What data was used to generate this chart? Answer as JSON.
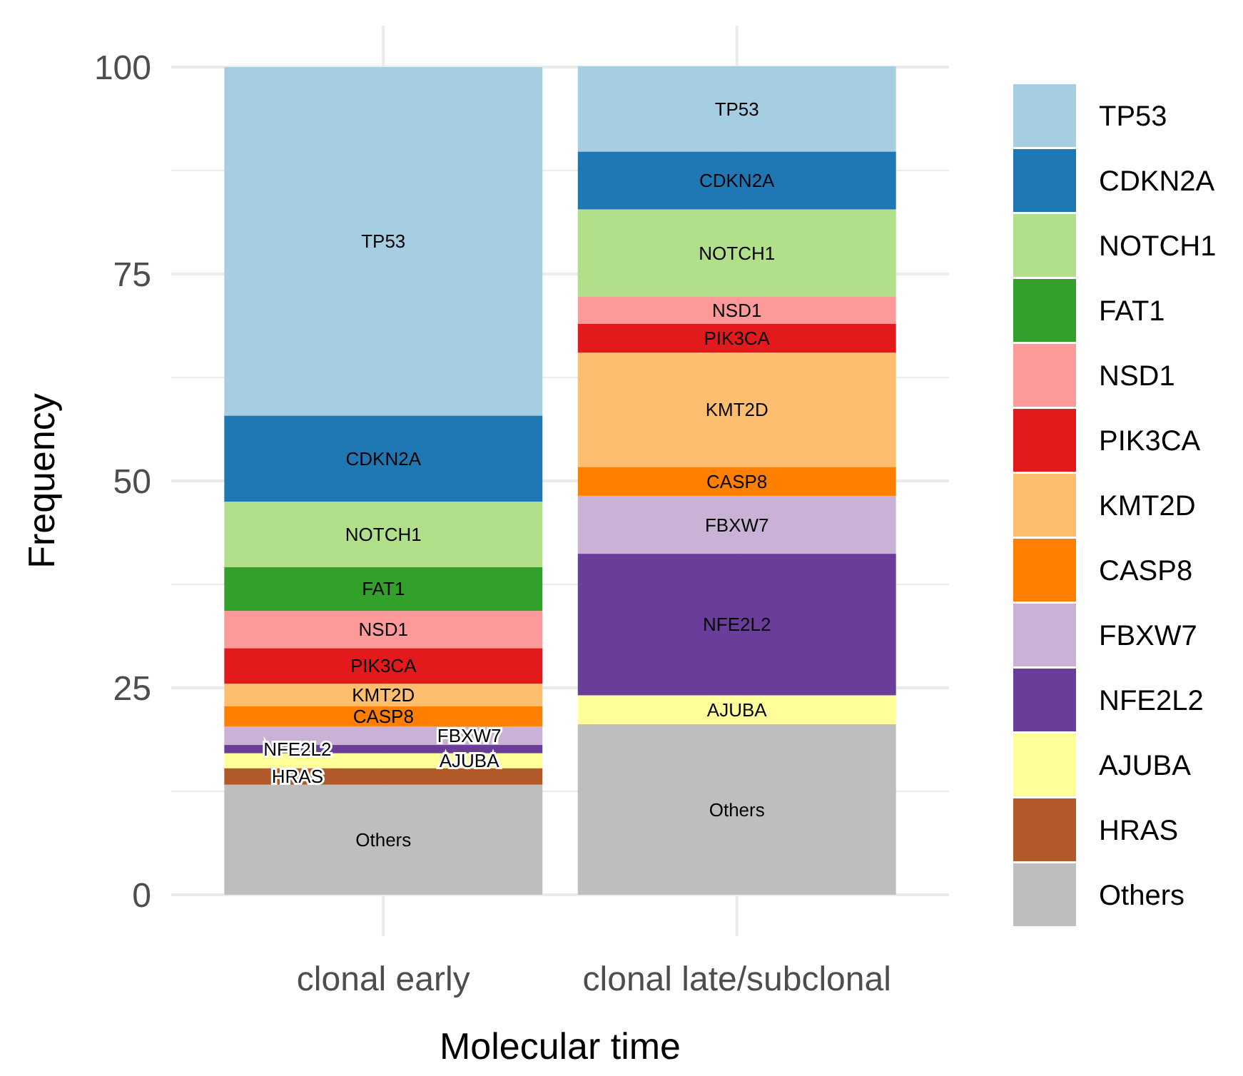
{
  "chart_data": {
    "type": "bar",
    "stacked": true,
    "xlabel": "Molecular time",
    "ylabel": "Frequency",
    "categories": [
      "clonal early",
      "clonal late/subclonal"
    ],
    "ylim": [
      -5,
      105
    ],
    "yticks": [
      0,
      {
        "value": 12.5,
        "label": null
      },
      25,
      {
        "value": 37.5,
        "label": null
      },
      50,
      {
        "value": 62.5,
        "label": null
      },
      75,
      {
        "value": 87.5,
        "label": null
      },
      100
    ],
    "grid": true,
    "legend": "right",
    "series": [
      {
        "name": "Others",
        "color": "#bebebe",
        "values": [
          13.3,
          20.6
        ]
      },
      {
        "name": "HRAS",
        "color": "#b15928",
        "values": [
          2.0,
          null
        ]
      },
      {
        "name": "AJUBA",
        "color": "#ffff99",
        "values": [
          1.8,
          3.5
        ]
      },
      {
        "name": "NFE2L2",
        "color": "#6a3d9a",
        "values": [
          1.0,
          17.1
        ]
      },
      {
        "name": "FBXW7",
        "color": "#cab2d6",
        "values": [
          2.2,
          7.0
        ]
      },
      {
        "name": "CASP8",
        "color": "#ff7f00",
        "values": [
          2.5,
          3.5
        ]
      },
      {
        "name": "KMT2D",
        "color": "#fdbf6f",
        "values": [
          2.7,
          13.8
        ]
      },
      {
        "name": "PIK3CA",
        "color": "#e31a1c",
        "values": [
          4.3,
          3.5
        ]
      },
      {
        "name": "NSD1",
        "color": "#fb9a99",
        "values": [
          4.5,
          3.3
        ]
      },
      {
        "name": "FAT1",
        "color": "#33a02c",
        "values": [
          5.3,
          null
        ]
      },
      {
        "name": "NOTCH1",
        "color": "#b2df8a",
        "values": [
          7.9,
          10.5
        ]
      },
      {
        "name": "CDKN2A",
        "color": "#1f78b4",
        "values": [
          10.4,
          7.0
        ]
      },
      {
        "name": "TP53",
        "color": "#a6cee3",
        "values": [
          42.1,
          10.3
        ]
      }
    ]
  }
}
